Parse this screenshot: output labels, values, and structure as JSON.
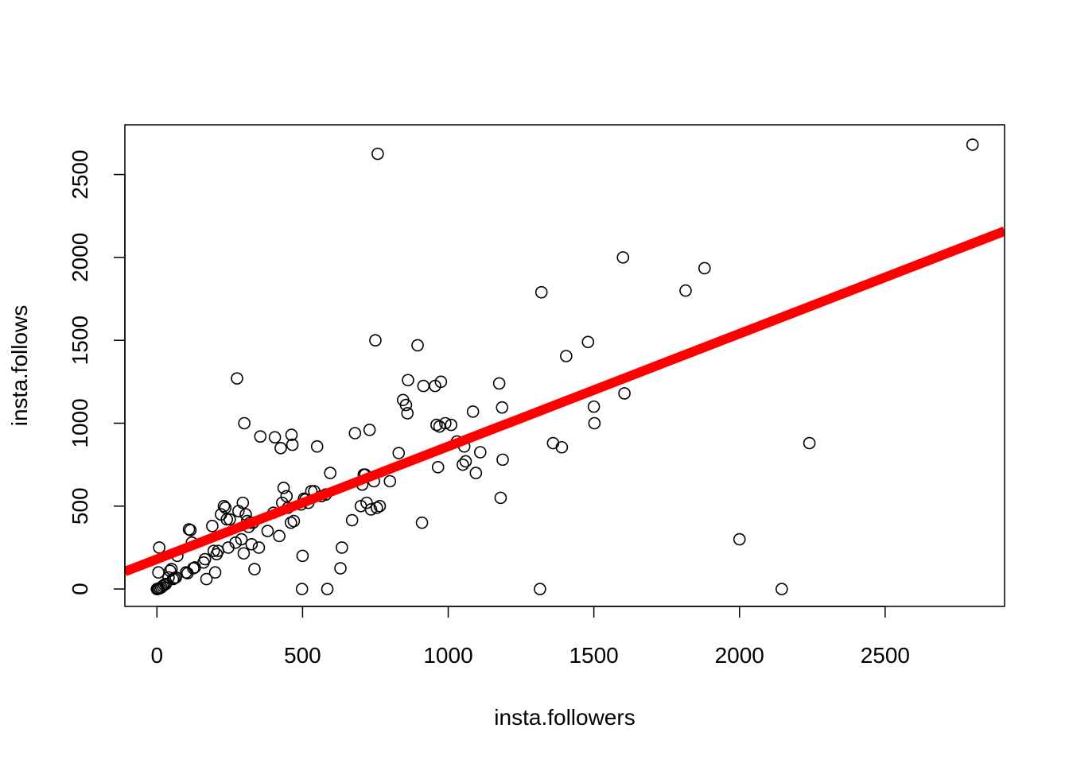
{
  "chart_data": {
    "type": "scatter",
    "title": "",
    "xlabel": "insta.followers",
    "ylabel": "insta.follows",
    "xlim": [
      -110,
      2910
    ],
    "ylim": [
      -105,
      2800
    ],
    "xticks": [
      0,
      500,
      1000,
      1500,
      2000,
      2500
    ],
    "yticks": [
      0,
      500,
      1000,
      1500,
      2000,
      2500
    ],
    "xtick_labels": [
      "0",
      "500",
      "1000",
      "1500",
      "2000",
      "2500"
    ],
    "ytick_labels": [
      "0",
      "500",
      "1000",
      "1500",
      "2000",
      "2500"
    ],
    "grid": false,
    "marker": "open-circle",
    "point_color": "#000000",
    "fit_line": {
      "intercept": 180,
      "slope": 0.68,
      "color": "#ff0000"
    },
    "points": [
      [
        0,
        0
      ],
      [
        2,
        0
      ],
      [
        5,
        2
      ],
      [
        10,
        5
      ],
      [
        15,
        10
      ],
      [
        20,
        18
      ],
      [
        25,
        25
      ],
      [
        30,
        30
      ],
      [
        5,
        100
      ],
      [
        8,
        250
      ],
      [
        40,
        70
      ],
      [
        45,
        110
      ],
      [
        50,
        120
      ],
      [
        55,
        60
      ],
      [
        60,
        65
      ],
      [
        65,
        70
      ],
      [
        70,
        200
      ],
      [
        100,
        100
      ],
      [
        105,
        95
      ],
      [
        110,
        360
      ],
      [
        115,
        355
      ],
      [
        120,
        280
      ],
      [
        125,
        125
      ],
      [
        130,
        130
      ],
      [
        160,
        160
      ],
      [
        165,
        180
      ],
      [
        170,
        60
      ],
      [
        190,
        380
      ],
      [
        195,
        230
      ],
      [
        200,
        100
      ],
      [
        205,
        210
      ],
      [
        210,
        230
      ],
      [
        220,
        450
      ],
      [
        230,
        500
      ],
      [
        235,
        490
      ],
      [
        240,
        420
      ],
      [
        245,
        250
      ],
      [
        250,
        420
      ],
      [
        270,
        280
      ],
      [
        275,
        1270
      ],
      [
        280,
        470
      ],
      [
        290,
        300
      ],
      [
        295,
        520
      ],
      [
        298,
        215
      ],
      [
        300,
        1000
      ],
      [
        305,
        450
      ],
      [
        310,
        410
      ],
      [
        315,
        375
      ],
      [
        320,
        400
      ],
      [
        325,
        270
      ],
      [
        330,
        400
      ],
      [
        335,
        120
      ],
      [
        350,
        250
      ],
      [
        355,
        920
      ],
      [
        380,
        350
      ],
      [
        400,
        460
      ],
      [
        405,
        915
      ],
      [
        420,
        320
      ],
      [
        425,
        850
      ],
      [
        430,
        520
      ],
      [
        435,
        610
      ],
      [
        445,
        560
      ],
      [
        450,
        490
      ],
      [
        460,
        400
      ],
      [
        462,
        930
      ],
      [
        465,
        870
      ],
      [
        470,
        410
      ],
      [
        495,
        510
      ],
      [
        498,
        0
      ],
      [
        500,
        200
      ],
      [
        505,
        545
      ],
      [
        510,
        540
      ],
      [
        520,
        520
      ],
      [
        530,
        590
      ],
      [
        540,
        590
      ],
      [
        550,
        860
      ],
      [
        565,
        560
      ],
      [
        580,
        570
      ],
      [
        585,
        0
      ],
      [
        595,
        700
      ],
      [
        630,
        125
      ],
      [
        635,
        250
      ],
      [
        670,
        415
      ],
      [
        680,
        940
      ],
      [
        700,
        500
      ],
      [
        705,
        630
      ],
      [
        710,
        690
      ],
      [
        715,
        690
      ],
      [
        720,
        520
      ],
      [
        730,
        960
      ],
      [
        735,
        480
      ],
      [
        745,
        650
      ],
      [
        750,
        1500
      ],
      [
        755,
        490
      ],
      [
        758,
        2625
      ],
      [
        765,
        500
      ],
      [
        800,
        650
      ],
      [
        830,
        820
      ],
      [
        845,
        1140
      ],
      [
        855,
        1110
      ],
      [
        860,
        1060
      ],
      [
        862,
        1260
      ],
      [
        895,
        1470
      ],
      [
        910,
        400
      ],
      [
        915,
        1225
      ],
      [
        955,
        1225
      ],
      [
        960,
        990
      ],
      [
        965,
        735
      ],
      [
        970,
        980
      ],
      [
        975,
        1250
      ],
      [
        990,
        1000
      ],
      [
        1010,
        990
      ],
      [
        1030,
        890
      ],
      [
        1050,
        750
      ],
      [
        1055,
        860
      ],
      [
        1060,
        770
      ],
      [
        1085,
        1070
      ],
      [
        1095,
        700
      ],
      [
        1110,
        825
      ],
      [
        1175,
        1240
      ],
      [
        1180,
        550
      ],
      [
        1185,
        1095
      ],
      [
        1187,
        780
      ],
      [
        1315,
        0
      ],
      [
        1320,
        1790
      ],
      [
        1360,
        880
      ],
      [
        1390,
        855
      ],
      [
        1405,
        1405
      ],
      [
        1480,
        1490
      ],
      [
        1500,
        1100
      ],
      [
        1502,
        1000
      ],
      [
        1600,
        2000
      ],
      [
        1605,
        1180
      ],
      [
        1815,
        1800
      ],
      [
        1880,
        1935
      ],
      [
        2000,
        300
      ],
      [
        2145,
        0
      ],
      [
        2240,
        880
      ],
      [
        2800,
        2680
      ]
    ]
  }
}
